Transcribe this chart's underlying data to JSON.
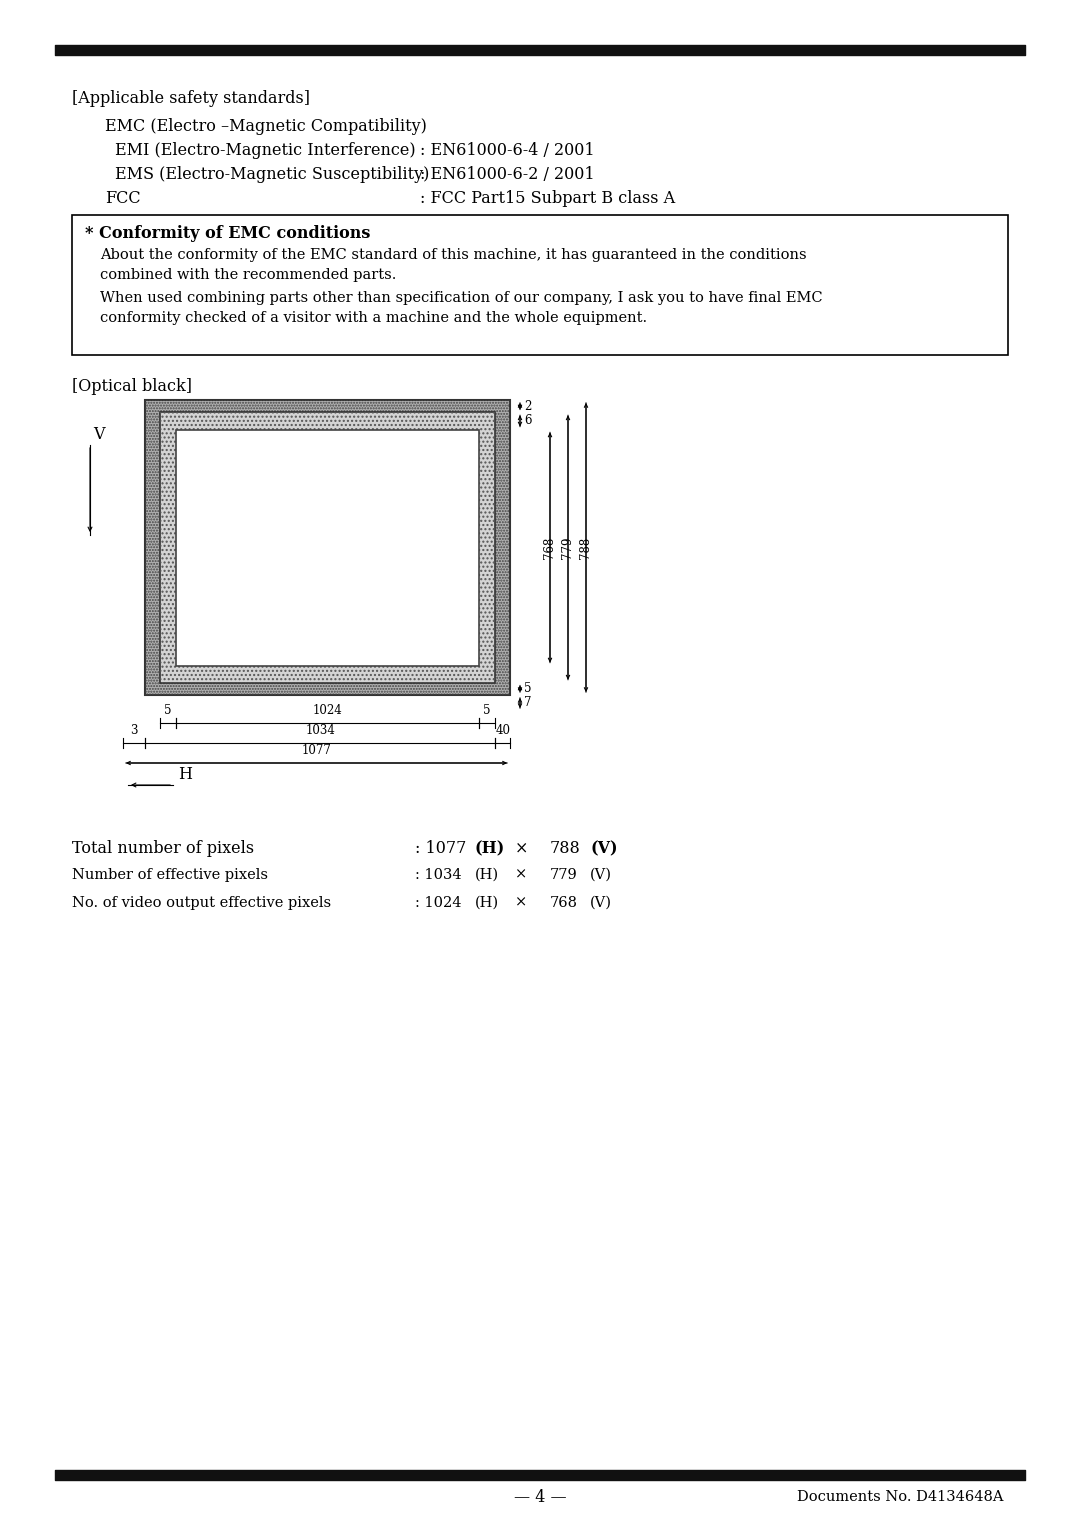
{
  "bg_color": "#ffffff",
  "bar_color": "#111111",
  "section1_header": "[Applicable safety standards]",
  "emc_line": "EMC (Electro –Magnetic Compatibility)",
  "emi_label": "EMI (Electro-Magnetic Interference)",
  "emi_value": ": EN61000-6-4 / 2001",
  "ems_label": "EMS (Electro-Magnetic Susceptibility)",
  "ems_value": ": EN61000-6-2 / 2001",
  "fcc_label": "FCC",
  "fcc_value": ": FCC Part15 Subpart B class A",
  "box_title": "* Conformity of EMC conditions",
  "box_line1": "About the conformity of the EMC standard of this machine, it has guaranteed in the conditions",
  "box_line2": "combined with the recommended parts.",
  "box_line3": "When used combining parts other than specification of our company, I ask you to have final EMC",
  "box_line4": "conformity checked of a visitor with a machine and the whole equipment.",
  "optical_black_label": "[Optical black]",
  "pixel_line1_label": "Total number of pixels",
  "pixel_line2_label": "Number of effective pixels",
  "pixel_line3_label": "No. of video output effective pixels",
  "page_num": "— 4 —",
  "doc_num": "Documents No. D4134648A"
}
